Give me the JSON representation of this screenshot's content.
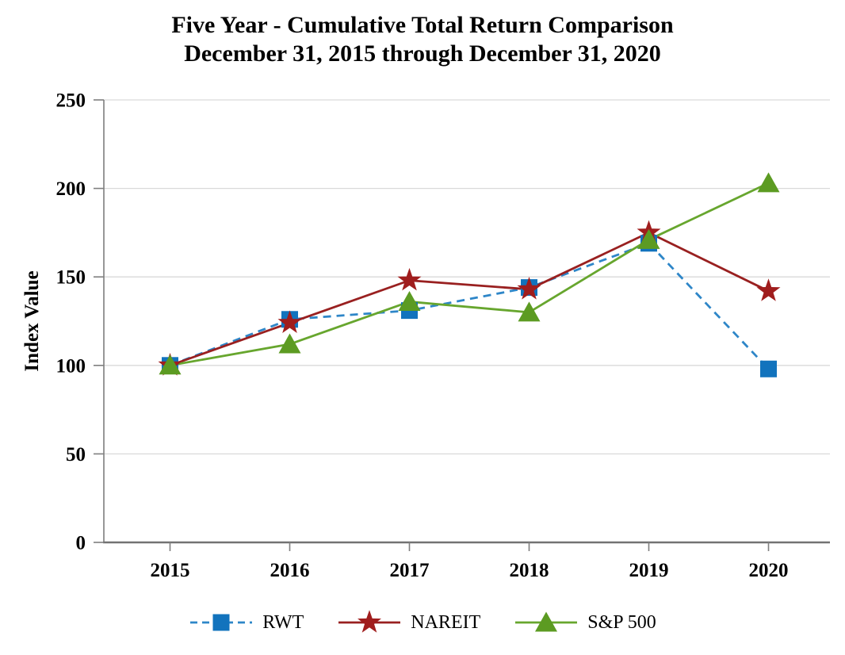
{
  "chart_data": {
    "type": "line",
    "title": "Five Year - Cumulative Total Return Comparison",
    "subtitle": "December 31, 2015 through December 31, 2020",
    "ylabel": "Index Value",
    "xlabel": "",
    "categories": [
      "2015",
      "2016",
      "2017",
      "2018",
      "2019",
      "2020"
    ],
    "y_ticks": [
      0,
      50,
      100,
      150,
      200,
      250
    ],
    "ylim": [
      0,
      250
    ],
    "grid": true,
    "legend_position": "bottom",
    "series": [
      {
        "name": "RWT",
        "marker": "square",
        "line_style": "dashed",
        "line_color": "#2E86C8",
        "marker_color": "#1273BD",
        "values": [
          100,
          126,
          131,
          144,
          169,
          98
        ]
      },
      {
        "name": "NAREIT",
        "marker": "star",
        "line_style": "solid",
        "line_color": "#992020",
        "marker_color": "#A01D1D",
        "values": [
          100,
          124,
          148,
          143,
          175,
          142
        ]
      },
      {
        "name": "S&P 500",
        "marker": "triangle",
        "line_style": "solid",
        "line_color": "#67A62E",
        "marker_color": "#5C9B22",
        "values": [
          100,
          112,
          136,
          130,
          171,
          203
        ]
      }
    ]
  },
  "colors": {
    "gridline": "#D9D9D9",
    "y_axis": "#7F7F7F",
    "x_axis": "#737373",
    "tick": "#7F7F7F",
    "text": "#000000"
  }
}
